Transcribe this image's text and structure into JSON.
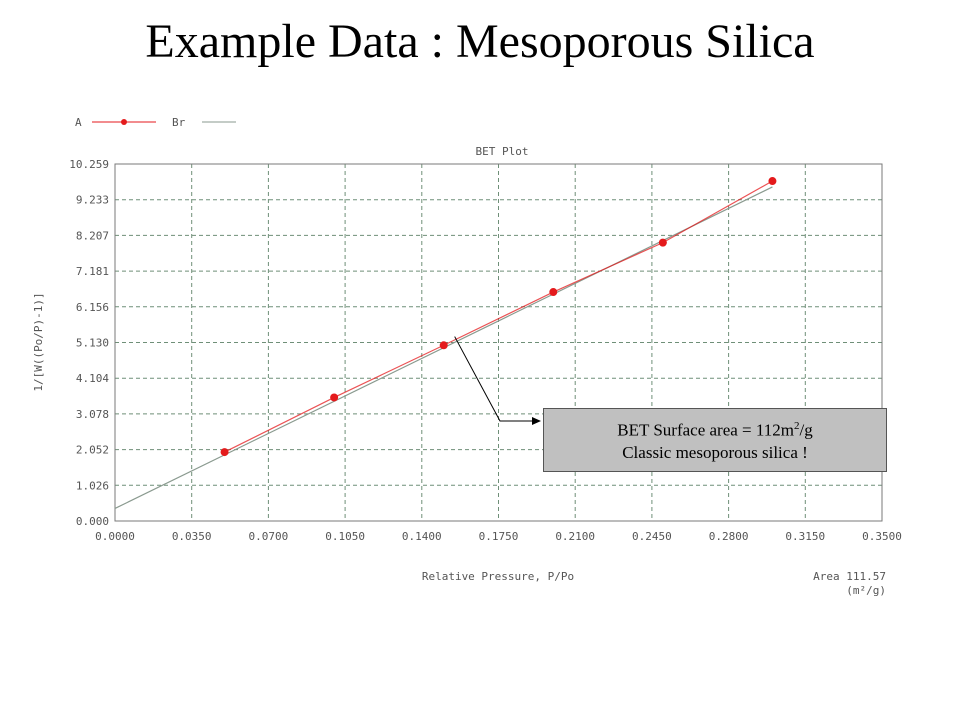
{
  "slide": {
    "title": "Example Data : Mesoporous Silica"
  },
  "chart_data": {
    "type": "scatter",
    "title": "BET Plot",
    "xlabel": "Relative Pressure, P/Po",
    "ylabel": "1/[W((Po/P)-1)]",
    "xlim": [
      0,
      0.35
    ],
    "ylim": [
      0,
      10.259
    ],
    "xticks": [
      "0.0000",
      "0.0350",
      "0.0700",
      "0.1050",
      "0.1400",
      "0.1750",
      "0.2100",
      "0.2450",
      "0.2800",
      "0.3150",
      "0.3500"
    ],
    "yticks": [
      "0.000",
      "1.026",
      "2.052",
      "3.078",
      "4.104",
      "5.130",
      "6.156",
      "7.181",
      "8.207",
      "9.233",
      "10.259"
    ],
    "grid": true,
    "legend": [
      "A",
      "Br"
    ],
    "series": [
      {
        "name": "A",
        "color": "#e41a1c",
        "x": [
          0.05,
          0.1,
          0.15,
          0.2,
          0.25,
          0.3
        ],
        "y": [
          1.98,
          3.55,
          5.05,
          6.58,
          8.0,
          9.77
        ]
      }
    ],
    "fit_line": {
      "name": "Br",
      "color": "#8a9a8f",
      "x": [
        0.0,
        0.3
      ],
      "y": [
        0.36,
        9.6
      ]
    },
    "area_label": "Area 111.57",
    "area_units": "(m²/g)",
    "annotation": {
      "line1_prefix": "BET Surface area = 112m",
      "line1_sup": "2",
      "line1_suffix": "/g",
      "line2": "Classic mesoporous silica !",
      "x": 0.155,
      "y": 5.3
    }
  }
}
